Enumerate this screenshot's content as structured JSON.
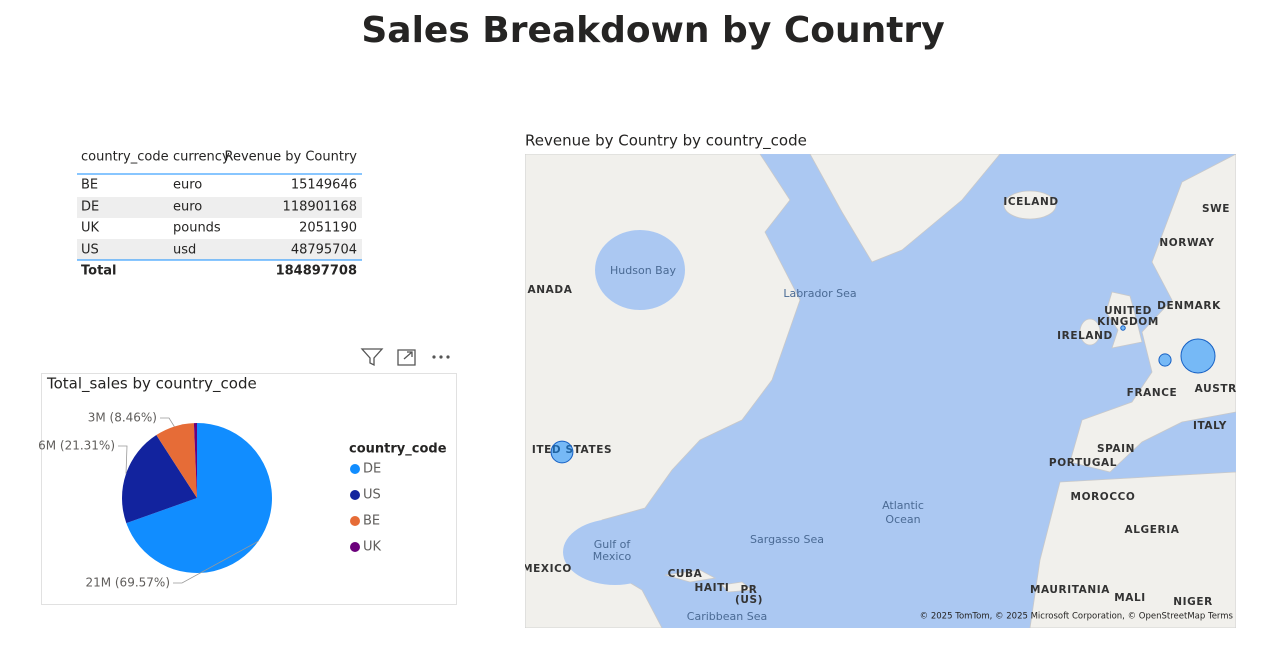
{
  "title": "Sales Breakdown by Country",
  "table": {
    "headers": [
      "country_code",
      "currency",
      "Revenue by Country"
    ],
    "rows": [
      [
        "BE",
        "euro",
        15149646
      ],
      [
        "DE",
        "euro",
        118901168
      ],
      [
        "UK",
        "pounds",
        2051190
      ],
      [
        "US",
        "usd",
        48795704
      ]
    ],
    "total": {
      "label": "Total",
      "value": 184897708
    }
  },
  "chart_data": {
    "type": "pie",
    "title": "Total_sales by country_code",
    "legend_title": "country_code",
    "categories": [
      "DE",
      "US",
      "BE",
      "UK"
    ],
    "values": [
      69.57,
      21.31,
      8.46,
      0.66
    ],
    "value_labels": [
      "21M (69.57%)",
      "6M (21.31%)",
      "3M (8.46%)",
      null
    ],
    "colors": [
      "#118dff",
      "#12239e",
      "#e66c37",
      "#6b007b"
    ]
  },
  "map": {
    "title": "Revenue by Country by country_code",
    "labels": [
      "ICELAND",
      "SWE",
      "NORWAY",
      "Hudson Bay",
      "ANADA",
      "Labrador Sea",
      "UNITED",
      "KINGDOM",
      "DENMARK",
      "IRELAND",
      "FRANCE",
      "AUSTRI",
      "ITALY",
      "SPAIN",
      "PORTUGAL",
      "ITED STATES",
      "Atlantic",
      "Ocean",
      "Gulf of",
      "Mexico",
      "Sargasso Sea",
      "MOROCCO",
      "ALGERIA",
      "MEXICO",
      "CUBA",
      "HAITI",
      "PR",
      "(US)",
      "MAURITANIA",
      "MALI",
      "NIGER",
      "Caribbean Sea"
    ],
    "attribution": "© 2025 TomTom, © 2025 Microsoft Corporation, © OpenStreetMap  Terms"
  }
}
